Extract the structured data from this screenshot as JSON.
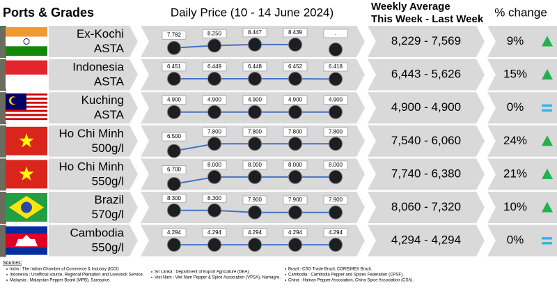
{
  "header": {
    "ports": "Ports & Grades",
    "daily": "Daily Price (10 - 14 June 2024)",
    "weekly_line1": "Weekly Average",
    "weekly_line2": "This Week - Last Week",
    "change": "% change"
  },
  "rows": [
    {
      "port": "Ex-Kochi",
      "grade": "ASTA",
      "values": [
        7782,
        8250,
        8447,
        8439,
        null
      ],
      "value_labels": [
        "7.782",
        "8.250",
        "8.447",
        "8.439",
        "."
      ],
      "weekly": "8,229 - 7,569",
      "change": "9%",
      "trend": "up"
    },
    {
      "port": "Indonesia",
      "grade": "ASTA",
      "values": [
        6451,
        6449,
        6448,
        6452,
        6418
      ],
      "value_labels": [
        "6.451",
        "6.449",
        "6.448",
        "6.452",
        "6.418"
      ],
      "weekly": "6,443 - 5,626",
      "change": "15%",
      "trend": "up"
    },
    {
      "port": "Kuching",
      "grade": "ASTA",
      "values": [
        4900,
        4900,
        4900,
        4900,
        4900
      ],
      "value_labels": [
        "4.900",
        "4.900",
        "4.900",
        "4.900",
        "4.900"
      ],
      "weekly": "4,900 - 4,900",
      "change": "0%",
      "trend": "equal"
    },
    {
      "port": "Ho Chi Minh",
      "grade": "500g/l",
      "values": [
        6500,
        7800,
        7800,
        7800,
        7800
      ],
      "value_labels": [
        "6.500",
        "7.800",
        "7.800",
        "7.800",
        "7.800"
      ],
      "weekly": "7,540 - 6,060",
      "change": "24%",
      "trend": "up"
    },
    {
      "port": "Ho Chi Minh",
      "grade": "550g/l",
      "values": [
        6700,
        8000,
        8000,
        8000,
        8000
      ],
      "value_labels": [
        "6.700",
        "8.000",
        "8.000",
        "8.000",
        "8.000"
      ],
      "weekly": "7,740 - 6,380",
      "change": "21%",
      "trend": "up"
    },
    {
      "port": "Brazil",
      "grade": "570g/l",
      "values": [
        8300,
        8300,
        7900,
        7900,
        7900
      ],
      "value_labels": [
        "8.300",
        "8.300",
        "7.900",
        "7.900",
        "7.900"
      ],
      "weekly": "8,060 - 7,320",
      "change": "10%",
      "trend": "up"
    },
    {
      "port": "Cambodia",
      "grade": "550g/l",
      "values": [
        4294,
        4294,
        4294,
        4294,
        4294
      ],
      "value_labels": [
        "4.294",
        "4.294",
        "4.294",
        "4.294",
        "4.294"
      ],
      "weekly": "4,294 - 4,294",
      "change": "0%",
      "trend": "equal"
    }
  ],
  "sources": {
    "title": "Sources:",
    "col1": [
      "India : The Indian Chamber of Commerce & Industry (ICCI)",
      "Indonesia : Unofficial source, Regional Plantation and Livestock Service.",
      "Malaysia : Malaysian Pepper Board (MPB), Saraspice."
    ],
    "col2": [
      "Sri Lanka : Department of Export Agriculture (DEA).",
      "Viet Nam : Viet Nam Pepper & Spice Association (VPSA), Namagro."
    ],
    "col3": [
      "Brazil : CSG Trade Brazil, COREIMEX Brazil.",
      "Cambodia : Cambodia Pepper and Spices Federation (CPSF).",
      "China : Hainan Pepper Association, China Spice Association (CSA)."
    ]
  }
}
